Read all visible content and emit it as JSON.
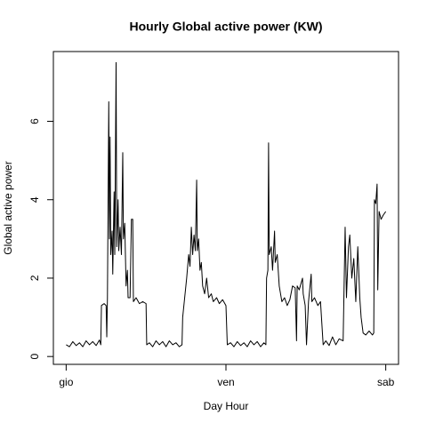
{
  "chart_data": {
    "type": "line",
    "title": "Hourly Global active power (KW)",
    "x_label": "Day Hour",
    "y_label": "Global active power",
    "xlim": [
      -1.92,
      49.92
    ],
    "ylim": [
      -0.2,
      7.78
    ],
    "xticks": [
      {
        "value": 0,
        "label": "gio"
      },
      {
        "value": 24,
        "label": "ven"
      },
      {
        "value": 48,
        "label": "sab"
      }
    ],
    "yticks": [
      0,
      2,
      4,
      6
    ],
    "series": [
      {
        "color": "#000000",
        "x": [
          0,
          0.5,
          1,
          1.5,
          2,
          2.5,
          3,
          3.5,
          4,
          4.5,
          5,
          5.2,
          5.3,
          5.7,
          6.0,
          6.1,
          6.2,
          6.4,
          6.5,
          6.6,
          6.7,
          6.9,
          7.0,
          7.2,
          7.3,
          7.5,
          7.6,
          7.8,
          7.9,
          8.1,
          8.3,
          8.5,
          8.6,
          8.8,
          9.0,
          9.2,
          9.3,
          9.6,
          9.8,
          10.0,
          10.1,
          10.5,
          11,
          11.5,
          12,
          12.1,
          12.5,
          13,
          13.5,
          14,
          14.5,
          15,
          15.5,
          16,
          16.5,
          17,
          17.4,
          17.5,
          17.8,
          18.1,
          18.4,
          18.6,
          18.8,
          19.0,
          19.2,
          19.4,
          19.6,
          19.7,
          19.9,
          20.1,
          20.3,
          20.5,
          20.8,
          21.1,
          21.4,
          21.8,
          22.1,
          22.6,
          23,
          23.5,
          24,
          24.2,
          24.7,
          25.2,
          25.7,
          26.2,
          26.7,
          27.2,
          27.7,
          28.2,
          28.7,
          29.2,
          29.7,
          30.0,
          30.1,
          30.3,
          30.4,
          30.5,
          30.8,
          31.0,
          31.3,
          31.4,
          31.7,
          32.0,
          32.4,
          32.8,
          33.2,
          33.6,
          34.0,
          34.4,
          34.6,
          34.7,
          35.0,
          35.5,
          35.6,
          35.9,
          36.1,
          36.4,
          36.8,
          36.9,
          37.3,
          37.8,
          38.2,
          38.6,
          39,
          39.5,
          40,
          40.5,
          41,
          41.6,
          41.9,
          42.1,
          42.4,
          42.6,
          42.9,
          43.2,
          43.5,
          43.8,
          44.1,
          44.3,
          44.6,
          45.0,
          45.5,
          46.0,
          46.2,
          46.3,
          46.5,
          46.7,
          46.8,
          47.0,
          47.3,
          47.6,
          48
        ],
        "values": [
          0.3,
          0.25,
          0.38,
          0.28,
          0.35,
          0.25,
          0.4,
          0.3,
          0.38,
          0.28,
          0.42,
          0.3,
          1.3,
          1.35,
          1.3,
          0.5,
          1.5,
          6.5,
          3.0,
          5.6,
          2.6,
          3.2,
          2.1,
          4.2,
          2.6,
          7.5,
          2.8,
          4.0,
          2.7,
          3.3,
          2.6,
          5.2,
          3.0,
          3.4,
          1.8,
          2.2,
          1.5,
          1.5,
          3.5,
          3.5,
          1.4,
          1.5,
          1.35,
          1.4,
          1.35,
          0.3,
          0.35,
          0.25,
          0.4,
          0.3,
          0.38,
          0.25,
          0.4,
          0.3,
          0.35,
          0.25,
          0.3,
          1.0,
          1.5,
          2.0,
          2.6,
          2.3,
          3.3,
          2.6,
          3.1,
          2.7,
          4.5,
          2.7,
          3.0,
          2.2,
          2.4,
          1.8,
          1.6,
          2.0,
          1.5,
          1.6,
          1.4,
          1.5,
          1.35,
          1.45,
          1.3,
          0.3,
          0.35,
          0.25,
          0.38,
          0.28,
          0.35,
          0.25,
          0.4,
          0.3,
          0.38,
          0.25,
          0.35,
          0.3,
          2.0,
          2.2,
          5.45,
          2.6,
          2.8,
          2.2,
          3.2,
          2.4,
          2.6,
          1.8,
          1.4,
          1.5,
          1.3,
          1.45,
          1.8,
          1.75,
          0.4,
          1.8,
          1.7,
          2.0,
          1.6,
          1.3,
          0.3,
          1.4,
          2.1,
          1.4,
          1.5,
          1.3,
          1.4,
          0.3,
          0.4,
          0.28,
          0.5,
          0.3,
          0.45,
          0.4,
          3.3,
          1.5,
          2.8,
          3.1,
          2.0,
          2.5,
          1.4,
          2.8,
          1.5,
          1.0,
          0.6,
          0.55,
          0.65,
          0.55,
          0.6,
          4.0,
          3.9,
          4.4,
          1.7,
          3.7,
          3.5,
          3.6,
          3.7
        ]
      }
    ]
  }
}
